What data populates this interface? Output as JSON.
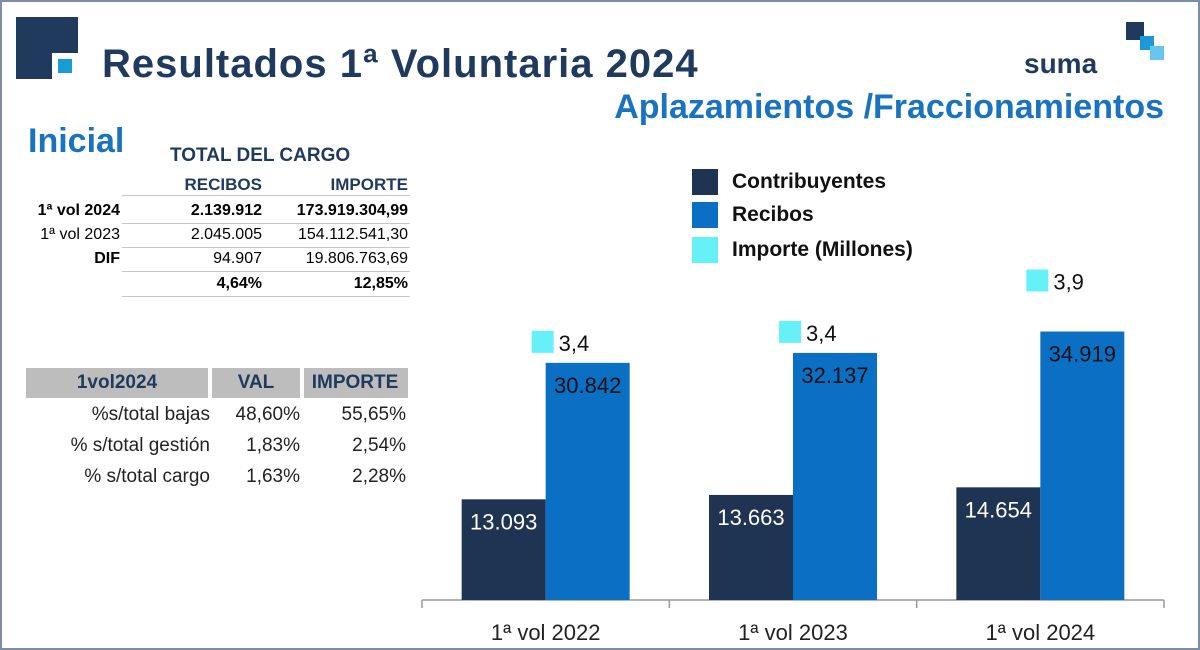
{
  "header": {
    "title": "Resultados 1ª Voluntaria 2024",
    "subtitle": "Aplazamientos /Fraccionamientos",
    "brand": "suma",
    "section": "Inicial"
  },
  "cargo_table": {
    "title": "TOTAL DEL CARGO",
    "columns": [
      "RECIBOS",
      "IMPORTE"
    ],
    "rows": [
      {
        "label": "1ª vol 2024",
        "recibos": "2.139.912",
        "importe": "173.919.304,99"
      },
      {
        "label": "1ª vol 2023",
        "recibos": "2.045.005",
        "importe": "154.112.541,30"
      },
      {
        "label": "DIF",
        "recibos": "94.907",
        "importe": "19.806.763,69"
      },
      {
        "label": "",
        "recibos": "4,64%",
        "importe": "12,85%"
      }
    ]
  },
  "ratio_table": {
    "columns": [
      "1vol2024",
      "VAL",
      "IMPORTE"
    ],
    "rows": [
      {
        "label": "%s/total bajas",
        "val": "48,60%",
        "importe": "55,65%"
      },
      {
        "label": "% s/total gestión",
        "val": "1,83%",
        "importe": "2,54%"
      },
      {
        "label": "% s/total cargo",
        "val": "1,63%",
        "importe": "2,28%"
      }
    ]
  },
  "colors": {
    "contribuyentes": "#1f3453",
    "recibos": "#0b70c4",
    "importe": "#66f0f7",
    "title": "#1f3a5c",
    "subtitle": "#1a73c1"
  },
  "chart_data": {
    "type": "bar",
    "categories": [
      "1ª vol 2022",
      "1ª vol 2023",
      "1ª vol 2024"
    ],
    "series": [
      {
        "name": "Contribuyentes",
        "values": [
          13093,
          13663,
          14654
        ],
        "labels": [
          "13.093",
          "13.663",
          "14.654"
        ]
      },
      {
        "name": "Recibos",
        "values": [
          30842,
          32137,
          34919
        ],
        "labels": [
          "30.842",
          "32.137",
          "34.919"
        ]
      },
      {
        "name": "Importe (Millones)",
        "values": [
          3.4,
          3.4,
          3.9
        ],
        "labels": [
          "3,4",
          "3,4",
          "3,9"
        ]
      }
    ],
    "legend": [
      "Contribuyentes",
      "Recibos",
      "Importe (Millones)"
    ],
    "legend_position": "top",
    "ylim": [
      0,
      45000
    ],
    "grid": false
  }
}
